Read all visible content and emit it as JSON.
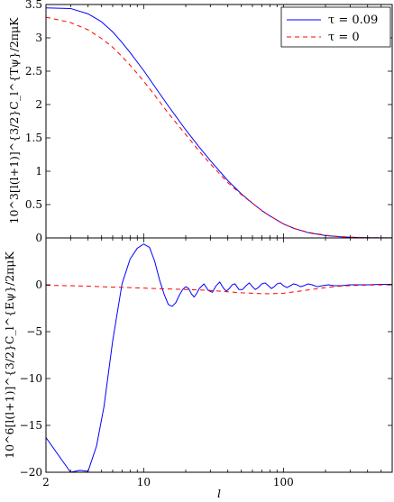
{
  "chart_data": [
    {
      "type": "line",
      "xscale": "log",
      "xlim": [
        2,
        600
      ],
      "ylim": [
        0,
        3.5
      ],
      "ylabel": "10^3[l(l+1)]^{3/2}C_l^{Tψ}/2πμK",
      "xlabel": "",
      "x_ticks": [
        "2",
        "10",
        "100"
      ],
      "y_ticks": [
        "0",
        "0.5",
        "1",
        "1.5",
        "2",
        "2.5",
        "3",
        "3.5"
      ],
      "legend_position": "top-right",
      "series": [
        {
          "name": "τ = 0.09",
          "color": "#0000ff",
          "style": "solid",
          "x": [
            2,
            3,
            4,
            5,
            6,
            7,
            8,
            10,
            12,
            15,
            20,
            25,
            30,
            40,
            50,
            60,
            70,
            80,
            100,
            120,
            150,
            200,
            250,
            300,
            400,
            500,
            600
          ],
          "y": [
            3.45,
            3.44,
            3.36,
            3.24,
            3.09,
            2.93,
            2.78,
            2.51,
            2.27,
            1.98,
            1.62,
            1.36,
            1.16,
            0.86,
            0.66,
            0.52,
            0.41,
            0.33,
            0.21,
            0.14,
            0.08,
            0.035,
            0.018,
            0.01,
            0.004,
            0.002,
            0.001
          ]
        },
        {
          "name": "τ = 0",
          "color": "#ff0000",
          "style": "dashed",
          "x": [
            2,
            3,
            4,
            5,
            6,
            7,
            8,
            10,
            12,
            15,
            20,
            25,
            30,
            40,
            50,
            60,
            70,
            80,
            100,
            120,
            150,
            200,
            250,
            300,
            400,
            500,
            600
          ],
          "y": [
            3.31,
            3.23,
            3.12,
            2.99,
            2.86,
            2.72,
            2.59,
            2.35,
            2.14,
            1.87,
            1.55,
            1.3,
            1.11,
            0.83,
            0.65,
            0.52,
            0.41,
            0.33,
            0.21,
            0.14,
            0.085,
            0.04,
            0.02,
            0.012,
            0.005,
            0.002,
            0.001
          ]
        }
      ]
    },
    {
      "type": "line",
      "xscale": "log",
      "xlim": [
        2,
        600
      ],
      "ylim": [
        -20,
        5
      ],
      "ylabel": "10^6[l(l+1)]^{3/2}C_l^{Eψ}/2πμK",
      "xlabel": "l",
      "x_ticks": [
        "2",
        "10",
        "100"
      ],
      "y_ticks": [
        "-20",
        "-15",
        "-10",
        "-5",
        "0"
      ],
      "series": [
        {
          "name": "τ = 0.09",
          "color": "#0000ff",
          "style": "solid",
          "x": [
            2,
            2.6,
            3.0,
            3.5,
            4.0,
            4.6,
            5.2,
            6.0,
            7.0,
            8.0,
            9.0,
            10.0,
            11.0,
            12.0,
            13.0,
            14.0,
            15.0,
            16.0,
            17.0,
            18.0,
            19.0,
            20.0,
            21.0,
            22.0,
            23.0,
            24.0,
            25.0,
            27.0,
            29.0,
            31.0,
            33.0,
            35.0,
            37.0,
            39.0,
            41.0,
            43.0,
            45.0,
            48.0,
            51.0,
            54.0,
            57.0,
            60.0,
            63.0,
            66.0,
            70.0,
            74.0,
            78.0,
            82.0,
            86.0,
            90.0,
            95.0,
            100.0,
            106.0,
            112.0,
            118.0,
            125.0,
            132.0,
            140.0,
            150.0,
            160.0,
            175.0,
            190.0,
            210.0,
            230.0,
            260.0,
            300.0,
            350.0,
            400.0,
            500.0,
            600.0
          ],
          "y": [
            -16.3,
            -18.7,
            -20.0,
            -19.8,
            -19.9,
            -17.2,
            -13.0,
            -6.0,
            0.1,
            2.75,
            3.9,
            4.35,
            4.0,
            2.5,
            0.5,
            -1.0,
            -2.1,
            -2.3,
            -1.9,
            -1.1,
            -0.5,
            -0.2,
            -0.4,
            -1.0,
            -1.3,
            -0.9,
            -0.4,
            0.1,
            -0.6,
            -0.8,
            -0.1,
            0.3,
            -0.3,
            -0.7,
            -0.4,
            0.0,
            0.1,
            -0.5,
            -0.5,
            -0.1,
            0.2,
            -0.2,
            -0.5,
            -0.3,
            0.1,
            0.2,
            -0.1,
            -0.4,
            -0.2,
            0.1,
            0.2,
            -0.1,
            -0.3,
            -0.1,
            0.1,
            0.0,
            -0.2,
            -0.1,
            0.1,
            0.0,
            -0.2,
            -0.1,
            0.0,
            -0.1,
            -0.1,
            0.0,
            0.0,
            0.0,
            0.05,
            0.05
          ]
        },
        {
          "name": "τ = 0",
          "color": "#ff0000",
          "style": "dashed",
          "x": [
            2,
            3,
            4,
            5,
            6,
            8,
            10,
            12,
            15,
            20,
            25,
            30,
            40,
            50,
            60,
            70,
            80,
            100,
            120,
            150,
            200,
            250,
            300,
            400,
            500,
            600
          ],
          "y": [
            -0.05,
            -0.1,
            -0.15,
            -0.2,
            -0.25,
            -0.3,
            -0.35,
            -0.4,
            -0.45,
            -0.5,
            -0.55,
            -0.6,
            -0.75,
            -0.85,
            -0.9,
            -0.95,
            -0.95,
            -0.9,
            -0.75,
            -0.55,
            -0.3,
            -0.15,
            -0.08,
            -0.03,
            -0.01,
            0.0
          ]
        }
      ]
    }
  ]
}
